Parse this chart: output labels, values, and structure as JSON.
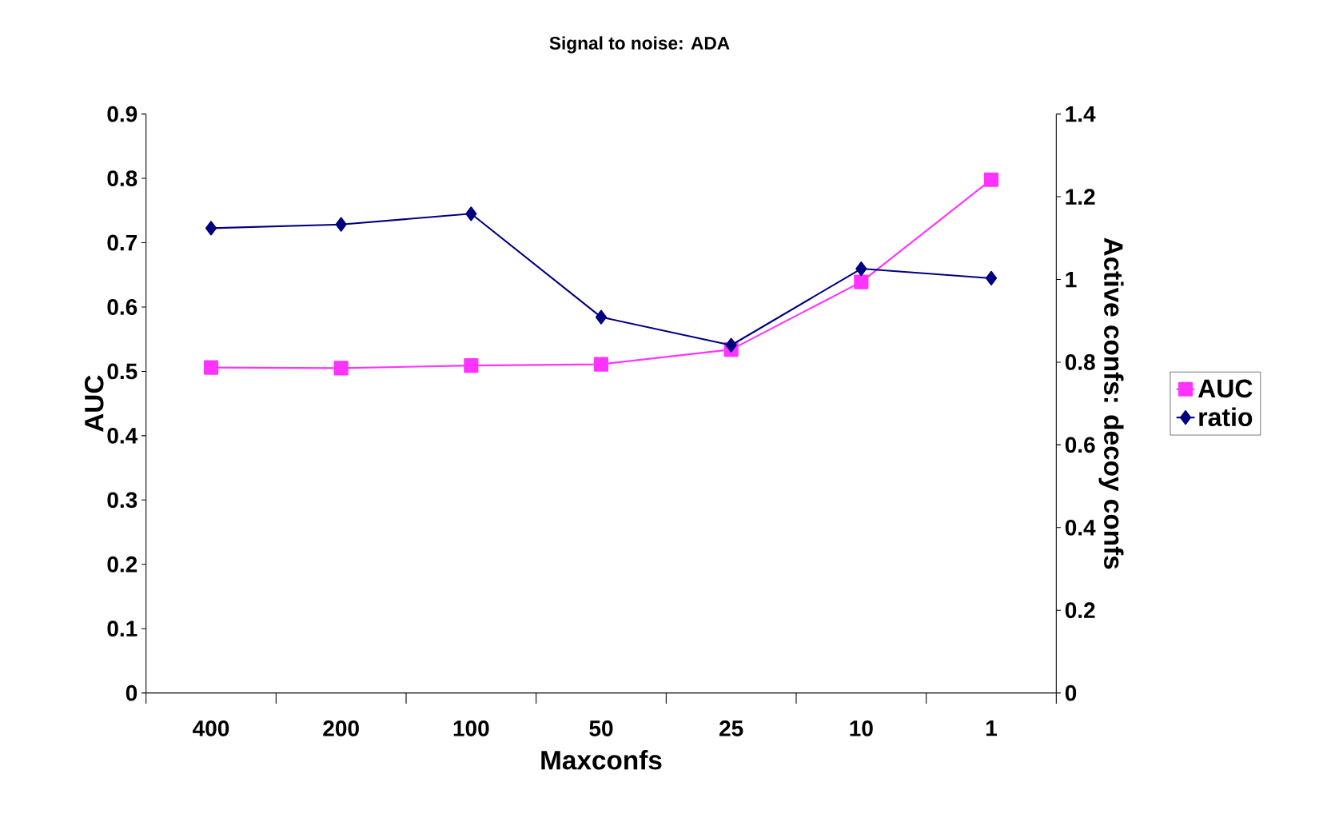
{
  "chart_data": {
    "type": "line",
    "title": "Signal to noise: ADA",
    "xlabel": "Maxconfs",
    "ylabel": "AUC",
    "y2label": "Active confs: decoy confs",
    "categories": [
      "400",
      "200",
      "100",
      "50",
      "25",
      "10",
      "1"
    ],
    "series": [
      {
        "name": "AUC",
        "color": "#ff33ff",
        "marker": "square",
        "values": [
          0.506,
          0.505,
          0.509,
          0.511,
          0.534,
          0.639,
          0.798
        ]
      },
      {
        "name": "ratio",
        "color": "#000080",
        "marker": "diamond",
        "axis": "y2",
        "values": [
          1.124,
          1.133,
          1.159,
          0.909,
          0.841,
          1.026,
          1.003
        ]
      }
    ],
    "ylim": [
      0,
      0.9
    ],
    "yticks": [
      0,
      0.1,
      0.2,
      0.3,
      0.4,
      0.5,
      0.6,
      0.7,
      0.8,
      0.9
    ],
    "y2lim": [
      0,
      1.4
    ],
    "y2ticks": [
      0,
      0.2,
      0.4,
      0.6,
      0.8,
      1,
      1.2,
      1.4
    ],
    "legend": "right",
    "grid": false,
    "line_style": "solid"
  }
}
